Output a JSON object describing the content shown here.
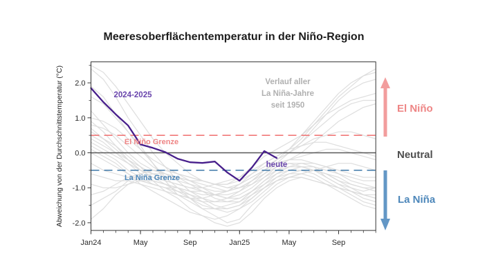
{
  "title": "Meeresoberflächentemperatur in der Niño-Region",
  "y_axis": {
    "label": "Abweichung von der Durchschnittstemperatur (°C)",
    "major_ticks": [
      {
        "value": 2.0,
        "label": "2.0"
      },
      {
        "value": 1.0,
        "label": "1.0"
      },
      {
        "value": 0.0,
        "label": "0.0"
      },
      {
        "value": -1.0,
        "label": "-1.0"
      },
      {
        "value": -2.0,
        "label": "-2.0"
      }
    ],
    "minor_tick_values": [
      2.5,
      1.5,
      0.5,
      -0.5,
      -1.5
    ]
  },
  "x_axis": {
    "n_months": 24,
    "major_ticks": [
      {
        "month_index": 0,
        "label": "Jan24"
      },
      {
        "month_index": 4,
        "label": "May"
      },
      {
        "month_index": 8,
        "label": "Sep"
      },
      {
        "month_index": 12,
        "label": "Jan25"
      },
      {
        "month_index": 16,
        "label": "May"
      },
      {
        "month_index": 20,
        "label": "Sep"
      }
    ]
  },
  "annotations": {
    "current_series_label": "2024-2025",
    "el_nino_threshold_label": "El Niño Grenze",
    "la_nina_threshold_label": "La Niña Grenze",
    "gray_note_line1": "Verlauf aller",
    "gray_note_line2": "La Niña-Jahre",
    "gray_note_line3": "seit 1950",
    "today_label": "heute",
    "side_el_nino": "El Niño",
    "side_neutral": "Neutral",
    "side_la_nina": "La Niña"
  },
  "colors": {
    "purple_line": "#471e8b",
    "purple_label": "#6a46ad",
    "salmon_text": "#ee8585",
    "salmon_line": "#f07878",
    "salmon_arrow": "#f29d9d",
    "blue_text": "#4d87ba",
    "blue_line": "#4a80ad",
    "blue_arrow": "#6397c6",
    "history_gray": "#dcdcdc",
    "note_gray": "#b0b0b0",
    "zero_line": "#585858",
    "spine": "#333333"
  },
  "chart_data": {
    "type": "line",
    "title": "Meeresoberflächentemperatur in der Niño-Region",
    "xlabel": "",
    "ylabel": "Abweichung von der Durchschnittstemperatur (°C)",
    "x_start": "Jan 2024",
    "x_step_months": 1,
    "n_points": 24,
    "ylim": [
      -2.22,
      2.6
    ],
    "grid": false,
    "thresholds": {
      "el_nino": 0.5,
      "la_nina": -0.5
    },
    "series": [
      {
        "name": "2024-2025",
        "values": [
          1.85,
          1.45,
          1.1,
          0.78,
          0.24,
          0.14,
          0.02,
          -0.17,
          -0.27,
          -0.29,
          -0.25,
          -0.56,
          -0.8,
          -0.42,
          0.05,
          -0.15
        ]
      }
    ],
    "history": {
      "label": "Verlauf aller La Niña-Jahre seit 1950",
      "series": [
        [
          2.4,
          2.1,
          1.6,
          1.0,
          0.5,
          0.0,
          -0.4,
          -0.8,
          -1.1,
          -1.3,
          -1.5,
          -1.6,
          -1.5,
          -1.3,
          -1.0,
          -0.8,
          -0.7,
          -0.7,
          -0.8,
          -0.9,
          -1.0,
          -1.1,
          -1.3,
          -1.4
        ],
        [
          2.5,
          2.3,
          1.9,
          1.4,
          0.9,
          0.4,
          0.0,
          -0.3,
          -0.6,
          -0.8,
          -0.9,
          -0.8,
          -0.7,
          -0.5,
          -0.3,
          -0.1,
          0.1,
          0.4,
          0.8,
          1.2,
          1.6,
          1.9,
          2.2,
          2.4
        ],
        [
          1.9,
          1.6,
          1.1,
          0.6,
          0.1,
          -0.3,
          -0.7,
          -1.0,
          -1.3,
          -1.6,
          -1.8,
          -2.0,
          -1.9,
          -1.5,
          -1.2,
          -0.9,
          -0.7,
          -0.6,
          -0.5,
          -0.6,
          -0.7,
          -0.9,
          -1.0,
          -1.0
        ],
        [
          1.6,
          1.4,
          1.0,
          0.6,
          0.2,
          -0.3,
          -0.8,
          -1.2,
          -1.4,
          -1.6,
          -1.6,
          -1.5,
          -1.4,
          -1.1,
          -0.8,
          -0.5,
          -0.3,
          -0.3,
          -0.4,
          -0.7,
          -0.9,
          -1.0,
          -1.1,
          -1.0
        ],
        [
          1.2,
          0.8,
          0.4,
          0.0,
          -0.3,
          -0.5,
          -0.6,
          -0.7,
          -0.8,
          -0.8,
          -0.9,
          -0.9,
          -0.7,
          -0.4,
          -0.1,
          0.1,
          0.3,
          0.5,
          0.8,
          1.1,
          1.3,
          1.5,
          1.6,
          1.7
        ],
        [
          1.0,
          0.9,
          0.7,
          0.4,
          0.1,
          -0.2,
          -0.4,
          -0.6,
          -0.7,
          -0.8,
          -0.9,
          -1.0,
          -1.0,
          -0.8,
          -0.5,
          -0.2,
          0.1,
          0.5,
          0.9,
          1.3,
          1.7,
          2.0,
          2.2,
          2.3
        ],
        [
          0.9,
          0.6,
          0.2,
          -0.2,
          -0.5,
          -0.7,
          -0.9,
          -1.1,
          -1.3,
          -1.4,
          -1.4,
          -1.3,
          -1.1,
          -0.8,
          -0.6,
          -0.4,
          -0.3,
          -0.4,
          -0.5,
          -0.6,
          -0.8,
          -0.9,
          -1.0,
          -1.1
        ],
        [
          0.8,
          0.7,
          0.5,
          0.2,
          -0.1,
          -0.4,
          -0.6,
          -0.8,
          -0.9,
          -1.0,
          -1.1,
          -1.1,
          -1.0,
          -0.9,
          -0.7,
          -0.4,
          -0.2,
          0.0,
          0.3,
          0.6,
          0.9,
          1.1,
          1.3,
          1.4
        ],
        [
          0.7,
          0.4,
          0.1,
          -0.2,
          -0.4,
          -0.6,
          -0.8,
          -0.9,
          -1.0,
          -1.1,
          -1.2,
          -1.3,
          -1.2,
          -1.0,
          -0.7,
          -0.5,
          -0.4,
          -0.4,
          -0.5,
          -0.7,
          -0.9,
          -1.1,
          -1.2,
          -1.3
        ],
        [
          0.6,
          0.4,
          0.2,
          -0.1,
          -0.4,
          -0.8,
          -1.1,
          -1.3,
          -1.6,
          -1.8,
          -2.0,
          -2.1,
          -2.0,
          -1.7,
          -1.3,
          -1.0,
          -0.8,
          -0.7,
          -0.8,
          -0.9,
          -1.0,
          -1.1,
          -1.2,
          -1.2
        ],
        [
          0.5,
          0.3,
          0.0,
          -0.3,
          -0.6,
          -0.8,
          -0.9,
          -1.0,
          -1.1,
          -1.1,
          -1.2,
          -1.2,
          -1.1,
          -0.9,
          -0.6,
          -0.3,
          0.0,
          0.3,
          0.7,
          1.1,
          1.5,
          1.8,
          2.0,
          2.1
        ],
        [
          0.4,
          0.2,
          0.0,
          -0.2,
          -0.5,
          -0.7,
          -0.8,
          -0.9,
          -1.0,
          -1.0,
          -0.9,
          -0.9,
          -0.8,
          -0.6,
          -0.4,
          -0.2,
          0.0,
          0.2,
          0.4,
          0.5,
          0.6,
          0.6,
          0.5,
          0.4
        ],
        [
          0.3,
          0.1,
          -0.1,
          -0.3,
          -0.5,
          -0.6,
          -0.7,
          -0.7,
          -0.8,
          -0.9,
          -1.0,
          -1.1,
          -1.0,
          -0.8,
          -0.5,
          -0.3,
          -0.2,
          -0.1,
          0.0,
          0.1,
          0.1,
          0.0,
          -0.1,
          -0.2
        ],
        [
          0.2,
          0.0,
          -0.2,
          -0.5,
          -0.7,
          -0.9,
          -1.0,
          -1.2,
          -1.3,
          -1.5,
          -1.6,
          -1.6,
          -1.5,
          -1.2,
          -0.9,
          -0.6,
          -0.4,
          -0.3,
          -0.3,
          -0.4,
          -0.5,
          -0.6,
          -0.7,
          -0.7
        ],
        [
          0.1,
          -0.1,
          -0.3,
          -0.6,
          -0.9,
          -1.1,
          -1.3,
          -1.5,
          -1.7,
          -1.8,
          -1.9,
          -1.8,
          -1.6,
          -1.3,
          -1.0,
          -0.7,
          -0.5,
          -0.4,
          -0.4,
          -0.5,
          -0.6,
          -0.8,
          -0.9,
          -1.0
        ],
        [
          0.0,
          -0.2,
          -0.4,
          -0.6,
          -0.8,
          -0.9,
          -1.0,
          -1.0,
          -1.1,
          -1.2,
          -1.2,
          -1.1,
          -0.9,
          -0.7,
          -0.5,
          -0.3,
          -0.2,
          -0.2,
          -0.3,
          -0.4,
          -0.6,
          -0.7,
          -0.8,
          -0.8
        ],
        [
          -0.3,
          -0.5,
          -0.6,
          -0.7,
          -0.8,
          -0.9,
          -1.0,
          -1.1,
          -1.2,
          -1.3,
          -1.4,
          -1.4,
          -1.3,
          -1.1,
          -0.8,
          -0.6,
          -0.5,
          -0.5,
          -0.6,
          -0.8,
          -1.0,
          -1.2,
          -1.4,
          -1.5
        ],
        [
          -0.6,
          -0.7,
          -0.8,
          -0.8,
          -0.9,
          -1.0,
          -1.1,
          -1.2,
          -1.3,
          -1.3,
          -1.2,
          -1.1,
          -0.9,
          -0.6,
          -0.3,
          -0.1,
          0.1,
          0.2,
          0.3,
          0.3,
          0.2,
          0.1,
          0.0,
          -0.1
        ],
        [
          -0.9,
          -1.0,
          -1.0,
          -0.9,
          -0.8,
          -0.8,
          -0.9,
          -1.0,
          -1.2,
          -1.4,
          -1.6,
          -1.7,
          -1.6,
          -1.4,
          -1.1,
          -0.8,
          -0.6,
          -0.5,
          -0.5,
          -0.6,
          -0.8,
          -1.0,
          -1.2,
          -1.3
        ],
        [
          -1.2,
          -1.1,
          -0.9,
          -0.7,
          -0.6,
          -0.5,
          -0.5,
          -0.6,
          -0.7,
          -0.8,
          -0.9,
          -1.0,
          -0.9,
          -0.7,
          -0.5,
          -0.2,
          0.0,
          0.3,
          0.6,
          0.9,
          1.2,
          1.4,
          1.5,
          1.5
        ],
        [
          -1.5,
          -1.3,
          -1.1,
          -0.8,
          -0.6,
          -0.5,
          -0.5,
          -0.6,
          -0.8,
          -1.0,
          -1.2,
          -1.3,
          -1.3,
          -1.1,
          -0.9,
          -0.7,
          -0.6,
          -0.6,
          -0.7,
          -0.9,
          -1.1,
          -1.3,
          -1.5,
          -1.6
        ],
        [
          -1.9,
          -1.6,
          -1.2,
          -0.9,
          -0.7,
          -0.6,
          -0.6,
          -0.7,
          -0.9,
          -1.1,
          -1.3,
          -1.4,
          -1.4,
          -1.2,
          -1.0,
          -0.8,
          -0.7,
          -0.6,
          -0.5,
          -0.4,
          -0.3,
          -0.3,
          -0.4,
          -0.5
        ]
      ]
    }
  }
}
